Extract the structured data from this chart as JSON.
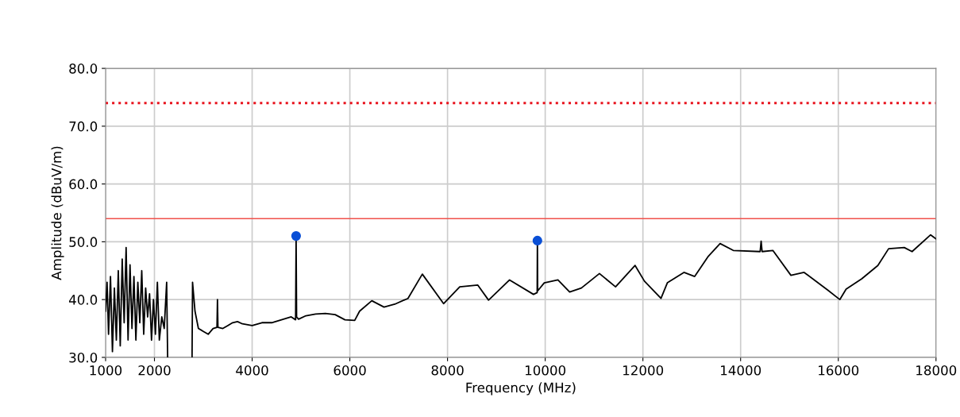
{
  "chart_data": {
    "type": "line",
    "xlabel": "Frequency (MHz)",
    "ylabel": "Amplitude (dBuV/m)",
    "xlim": [
      1000,
      18000
    ],
    "xticks": [
      1000,
      2000,
      4000,
      6000,
      8000,
      10000,
      12000,
      14000,
      16000,
      18000
    ],
    "ylim": [
      30,
      80
    ],
    "yticks": [
      {
        "value": 30,
        "label": "30.0"
      },
      {
        "value": 40,
        "label": "40.0"
      },
      {
        "value": 50,
        "label": "50.0"
      },
      {
        "value": 60,
        "label": "60.0"
      },
      {
        "value": 70,
        "label": "70.0"
      },
      {
        "value": 80,
        "label": "80.0"
      }
    ],
    "grid": true,
    "legend": false,
    "ref_lines": [
      {
        "axis": "y",
        "value": 74,
        "label": null,
        "color": "#e8141e",
        "line_style": "dotted"
      },
      {
        "axis": "y",
        "value": 54,
        "label": null,
        "color": "#f0504a",
        "line_style": "solid"
      }
    ],
    "series": [
      {
        "color": "#000000",
        "marker": "none",
        "line_style": "solid",
        "x": [
          1000,
          1030,
          1060,
          1100,
          1140,
          1180,
          1220,
          1260,
          1300,
          1340,
          1380,
          1420,
          1460,
          1500,
          1540,
          1580,
          1620,
          1660,
          1700,
          1740,
          1780,
          1820,
          1860,
          1900,
          1940,
          1980,
          2020,
          2060,
          2100,
          2150,
          2200,
          2250,
          2270,
          2500,
          2770,
          2780,
          2830,
          2900,
          3000,
          3100,
          3200,
          3280,
          3290,
          3300,
          3400,
          3500,
          3600,
          3700,
          3800,
          4000,
          4200,
          4400,
          4600,
          4800,
          4890,
          4900,
          4910,
          4950,
          5100,
          5300,
          5500,
          5700,
          5900,
          6100,
          6200,
          6450,
          6700,
          6920,
          7190,
          7484,
          7919,
          8250,
          8620,
          8840,
          9270,
          9760,
          9835,
          9840,
          9845,
          9980,
          10260,
          10500,
          10740,
          11110,
          11440,
          11840,
          12030,
          12370,
          12500,
          12840,
          13060,
          13340,
          13580,
          13850,
          14400,
          14420,
          14440,
          14660,
          15030,
          15300,
          15790,
          16030,
          16160,
          16480,
          16810,
          17030,
          17350,
          17510,
          17890,
          18000
        ],
        "values": [
          38,
          43,
          34,
          44,
          31,
          42,
          33,
          45,
          32,
          47,
          36,
          49,
          33,
          46,
          35,
          44,
          33,
          43,
          36,
          45,
          34,
          42,
          37,
          41,
          33,
          40,
          34,
          43,
          33,
          37,
          35,
          43,
          30,
          null,
          30,
          43,
          38,
          35,
          34.5,
          34,
          35,
          35.2,
          40,
          35.2,
          35,
          35.5,
          36,
          36.2,
          35.8,
          35.5,
          36,
          36,
          36.5,
          37,
          36.5,
          51,
          37,
          36.6,
          37.2,
          37.5,
          37.6,
          37.4,
          36.5,
          36.4,
          38,
          39.8,
          38.7,
          39.2,
          40.2,
          44.4,
          39.3,
          42.2,
          42.5,
          39.9,
          43.4,
          40.9,
          41.2,
          50.2,
          41.5,
          42.9,
          43.4,
          41.3,
          42,
          44.5,
          42.2,
          45.9,
          43.2,
          40.2,
          42.9,
          44.7,
          44,
          47.5,
          49.7,
          48.5,
          48.3,
          50.1,
          48.3,
          48.5,
          44.2,
          44.7,
          41.6,
          40,
          41.8,
          43.6,
          45.9,
          48.8,
          49,
          48.3,
          51.2,
          50.5
        ]
      },
      {
        "type": "scatter",
        "color": "#0a4fd6",
        "marker": "circle",
        "x": [
          4900,
          9840
        ],
        "values": [
          51,
          50.2
        ]
      }
    ]
  }
}
